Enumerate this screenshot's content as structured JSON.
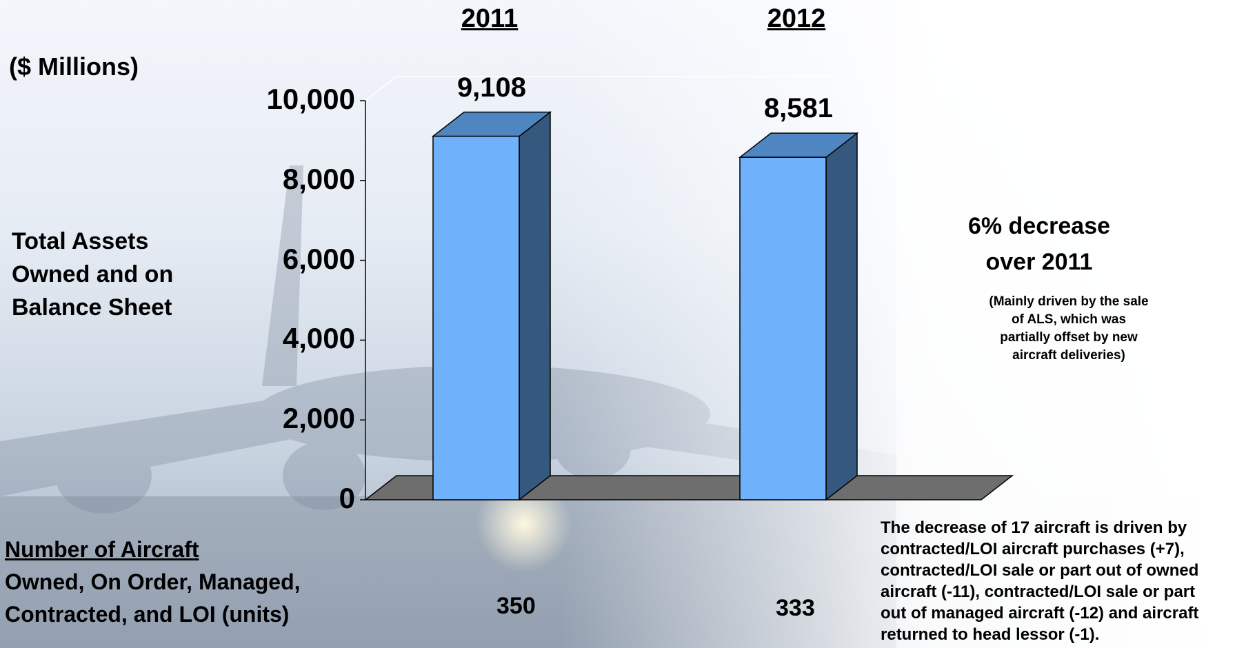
{
  "header": {
    "years": [
      "2011",
      "2012"
    ],
    "unit": "($ Millions)"
  },
  "left_label": {
    "lines": [
      "Total Assets",
      "Owned and on",
      "Balance Sheet"
    ]
  },
  "annotation": {
    "headline_line1": "6% decrease",
    "headline_line2": "over 2011",
    "note_lines": [
      "(Mainly driven by the sale",
      "of ALS, which was",
      "partially offset by new",
      "aircraft deliveries)"
    ]
  },
  "aircraft": {
    "title": "Number of Aircraft",
    "line2": "Owned, On Order, Managed,",
    "line3": "Contracted, and LOI (units)",
    "values": [
      "350",
      "333"
    ],
    "explanation_lines": [
      "The decrease of 17 aircraft is driven by",
      "contracted/LOI aircraft purchases (+7),",
      "contracted/LOI sale or part out of owned",
      "aircraft (-11), contracted/LOI sale or part",
      "out of managed aircraft (-12) and aircraft",
      "returned to head lessor (-1)."
    ]
  },
  "colors": {
    "bar_front": "#6fb1fb",
    "bar_top": "#4f86c2",
    "bar_side": "#34587e",
    "floor": "#6e6e6e"
  },
  "chart_data": {
    "type": "bar",
    "categories": [
      "2011",
      "2012"
    ],
    "values": [
      9108,
      8581
    ],
    "data_labels": [
      "9,108",
      "8,581"
    ],
    "ylim": [
      0,
      10000
    ],
    "yticks": [
      0,
      2000,
      4000,
      6000,
      8000,
      10000
    ],
    "ytick_labels": [
      "0",
      "2,000",
      "4,000",
      "6,000",
      "8,000",
      "10,000"
    ],
    "style": "3d-column",
    "grid": false
  }
}
